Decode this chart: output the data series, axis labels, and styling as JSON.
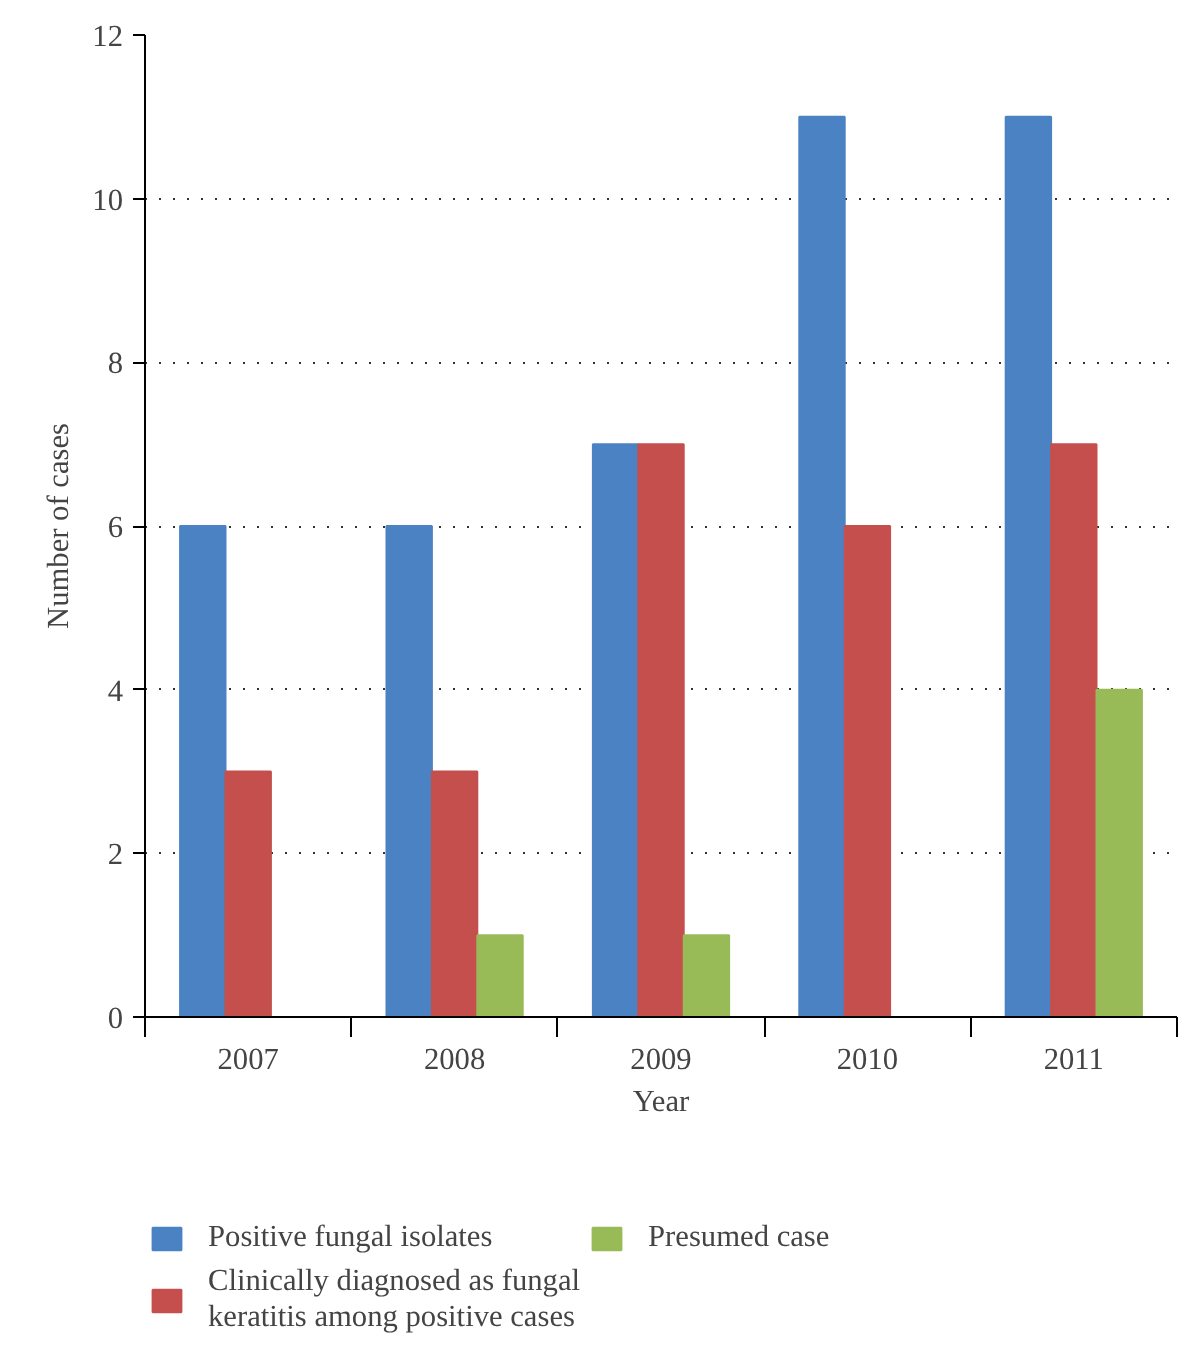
{
  "chart_data": {
    "type": "bar",
    "xlabel": "Year",
    "ylabel": "Number of cases",
    "categories": [
      "2007",
      "2008",
      "2009",
      "2010",
      "2011"
    ],
    "series": [
      {
        "name": "Positive fungal isolates",
        "color": "#4a82c3",
        "values": [
          6,
          6,
          7,
          11,
          11
        ]
      },
      {
        "name": "Clinically diagnosed as fungal keratitis among positive cases",
        "color": "#c44f4d",
        "values": [
          3,
          3,
          7,
          6,
          7
        ]
      },
      {
        "name": "Presumed case",
        "color": "#98bb57",
        "values": [
          0,
          1,
          1,
          0,
          4
        ]
      }
    ],
    "ylim": [
      0,
      12
    ],
    "yticks": [
      0,
      2,
      4,
      6,
      8,
      10,
      12
    ],
    "grid": "y",
    "legend": "bottom"
  }
}
